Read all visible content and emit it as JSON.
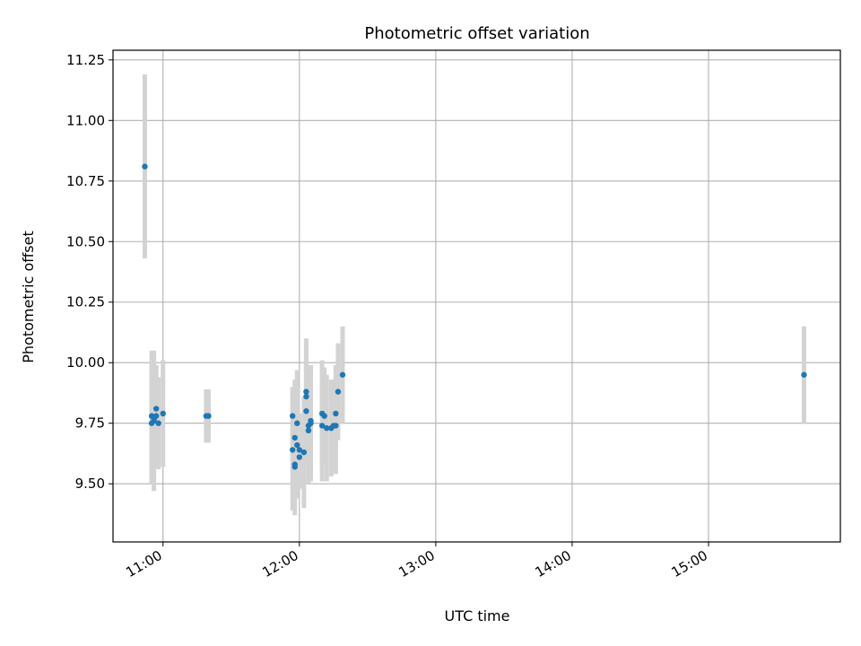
{
  "chart_data": {
    "type": "scatter",
    "title": "Photometric offset variation",
    "xlabel": "UTC time",
    "ylabel": "Photometric offset",
    "x_unit": "UTC time (HH:MM)",
    "xlim": [
      "10:38",
      "15:58"
    ],
    "ylim": [
      9.26,
      11.29
    ],
    "x_ticks": [
      "11:00",
      "12:00",
      "13:00",
      "14:00",
      "15:00"
    ],
    "y_ticks": [
      9.5,
      9.75,
      10.0,
      10.25,
      10.5,
      10.75,
      11.0,
      11.25
    ],
    "y_tick_labels": [
      "9.50",
      "9.75",
      "10.00",
      "10.25",
      "10.50",
      "10.75",
      "11.00",
      "11.25"
    ],
    "grid": true,
    "point_color": "#1f77b4",
    "errorbar_color": "#d3d3d3",
    "series": [
      {
        "points": [
          {
            "t": "10:52",
            "y": 10.81,
            "err": 0.38
          },
          {
            "t": "10:55",
            "y": 9.78,
            "err": 0.27
          },
          {
            "t": "10:55",
            "y": 9.75,
            "err": 0.25
          },
          {
            "t": "10:56",
            "y": 9.76,
            "err": 0.29
          },
          {
            "t": "10:56",
            "y": 9.77,
            "err": 0.2
          },
          {
            "t": "10:57",
            "y": 9.81,
            "err": 0.18
          },
          {
            "t": "10:57",
            "y": 9.78,
            "err": 0.21
          },
          {
            "t": "10:58",
            "y": 9.75,
            "err": 0.19
          },
          {
            "t": "11:00",
            "y": 9.79,
            "err": 0.22
          },
          {
            "t": "11:19",
            "y": 9.78,
            "err": 0.11
          },
          {
            "t": "11:20",
            "y": 9.78,
            "err": 0.11
          },
          {
            "t": "11:57",
            "y": 9.78,
            "err": 0.12
          },
          {
            "t": "11:57",
            "y": 9.64,
            "err": 0.25
          },
          {
            "t": "11:58",
            "y": 9.58,
            "err": 0.15
          },
          {
            "t": "11:58",
            "y": 9.57,
            "err": 0.2
          },
          {
            "t": "11:58",
            "y": 9.69,
            "err": 0.24
          },
          {
            "t": "11:59",
            "y": 9.75,
            "err": 0.22
          },
          {
            "t": "11:59",
            "y": 9.66,
            "err": 0.22
          },
          {
            "t": "12:00",
            "y": 9.61,
            "err": 0.13
          },
          {
            "t": "12:00",
            "y": 9.64,
            "err": 0.15
          },
          {
            "t": "12:02",
            "y": 9.63,
            "err": 0.23
          },
          {
            "t": "12:03",
            "y": 9.88,
            "err": 0.22
          },
          {
            "t": "12:03",
            "y": 9.86,
            "err": 0.23
          },
          {
            "t": "12:03",
            "y": 9.8,
            "err": 0.2
          },
          {
            "t": "12:04",
            "y": 9.72,
            "err": 0.21
          },
          {
            "t": "12:04",
            "y": 9.74,
            "err": 0.24
          },
          {
            "t": "12:05",
            "y": 9.75,
            "err": 0.24
          },
          {
            "t": "12:05",
            "y": 9.76,
            "err": 0.23
          },
          {
            "t": "12:10",
            "y": 9.74,
            "err": 0.23
          },
          {
            "t": "12:10",
            "y": 9.79,
            "err": 0.22
          },
          {
            "t": "12:11",
            "y": 9.78,
            "err": 0.2
          },
          {
            "t": "12:12",
            "y": 9.73,
            "err": 0.22
          },
          {
            "t": "12:14",
            "y": 9.73,
            "err": 0.2
          },
          {
            "t": "12:15",
            "y": 9.74,
            "err": 0.19
          },
          {
            "t": "12:16",
            "y": 9.74,
            "err": 0.2
          },
          {
            "t": "12:16",
            "y": 9.79,
            "err": 0.2
          },
          {
            "t": "12:17",
            "y": 9.88,
            "err": 0.2
          },
          {
            "t": "12:19",
            "y": 9.95,
            "err": 0.2
          },
          {
            "t": "15:42",
            "y": 9.95,
            "err": 0.2
          }
        ]
      }
    ]
  }
}
